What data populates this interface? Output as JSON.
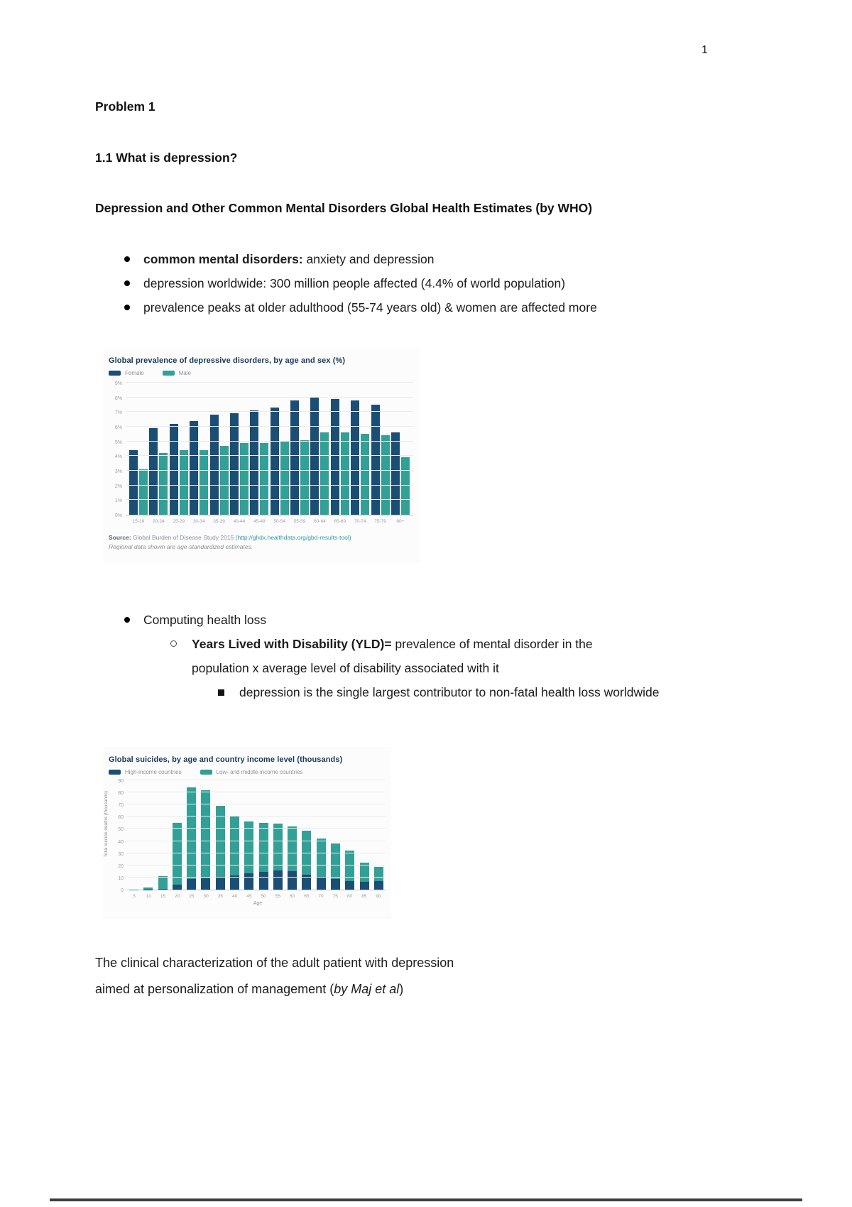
{
  "page": {
    "number": "1"
  },
  "content": {
    "heading_problem": "Problem 1",
    "heading_section": "1.1 What is depression?",
    "heading_who": "Depression and Other Common Mental Disorders Global Health Estimates (by WHO)",
    "bullets_top": [
      {
        "bold": "common mental disorders:",
        "text": " anxiety and depression"
      },
      {
        "bold": "",
        "text": "depression worldwide: 300 million people affected (4.4% of world population)"
      },
      {
        "bold": "",
        "text": "prevalence peaks at older adulthood (55-74 years old) & women are affected more"
      }
    ],
    "bullet_computing": "Computing health loss",
    "yld": {
      "bold": "Years Lived with Disability (YLD)=",
      "text": " prevalence of mental disorder in the population x average level of disability associated with it"
    },
    "yld_sub": "depression is the single largest contributor to non-fatal health loss worldwide",
    "footer_heading": {
      "line1": "The clinical characterization of the adult patient with depression",
      "line2_prefix": "aimed at personalization of management (",
      "line2_italic": "by Maj et al",
      "line2_suffix": ")"
    }
  },
  "chart_data": [
    {
      "type": "bar",
      "title": "Global prevalence of depressive disorders, by age and sex (%)",
      "categories": [
        "15-19",
        "20-24",
        "25-29",
        "30-34",
        "35-39",
        "40-44",
        "45-49",
        "50-54",
        "55-59",
        "60-64",
        "65-69",
        "70-74",
        "75-79",
        "80+"
      ],
      "series": [
        {
          "name": "Female",
          "color": "#1b4e74",
          "values": [
            4.4,
            5.9,
            6.2,
            6.4,
            6.8,
            6.9,
            7.1,
            7.3,
            7.8,
            8.0,
            7.9,
            7.8,
            7.5,
            5.6
          ]
        },
        {
          "name": "Male",
          "color": "#32a096",
          "values": [
            3.1,
            4.2,
            4.4,
            4.4,
            4.7,
            4.9,
            4.9,
            5.0,
            5.1,
            5.6,
            5.6,
            5.5,
            5.4,
            3.9
          ]
        }
      ],
      "xlabel": "",
      "ylabel": "",
      "ylim": [
        0,
        9
      ],
      "yticks": [
        "9%",
        "8%",
        "7%",
        "6%",
        "5%",
        "4%",
        "3%",
        "2%",
        "1%",
        "0%"
      ],
      "grid": true,
      "legend_position": "top-left",
      "source_label": "Source:",
      "source_text": " Global Burden of Disease Study 2015 ",
      "source_link": "(http://ghdx.healthdata.org/gbd-results-tool)",
      "source_note": "Regional data shown are age-standardized estimates."
    },
    {
      "type": "bar",
      "stacked": true,
      "title": "Global suicides, by age and country income level (thousands)",
      "categories": [
        "5",
        "10",
        "15",
        "20",
        "25",
        "30",
        "35",
        "40",
        "45",
        "50",
        "55",
        "60",
        "65",
        "70",
        "75",
        "80",
        "85",
        "90"
      ],
      "series": [
        {
          "name": "High-income countries",
          "color": "#1b4e74",
          "values": [
            0,
            0.2,
            0.6,
            4,
            8.5,
            9.5,
            10.5,
            11.5,
            13.5,
            14.5,
            16,
            15,
            12.5,
            10,
            8.5,
            7,
            6.5,
            7
          ]
        },
        {
          "name": "Low- and middle-income countries",
          "color": "#32a096",
          "values": [
            0.3,
            1.3,
            10.4,
            51,
            75.5,
            72.5,
            58.5,
            48.5,
            42.5,
            40.5,
            38.5,
            37,
            36,
            32,
            29.5,
            25,
            16,
            12
          ]
        }
      ],
      "xlabel": "Age",
      "ylabel": "Total suicide deaths (thousands)",
      "ylim": [
        0,
        90
      ],
      "yticks": [
        "90",
        "80",
        "70",
        "60",
        "50",
        "40",
        "30",
        "20",
        "10",
        "0"
      ],
      "grid": true,
      "legend_position": "top-left"
    }
  ],
  "colors": {
    "female_navy": "#1b4e74",
    "male_teal": "#32a096",
    "chart_title_navy": "#17395a",
    "axis_gray": "#9aa0a6",
    "link_teal": "#2e9a9c"
  }
}
